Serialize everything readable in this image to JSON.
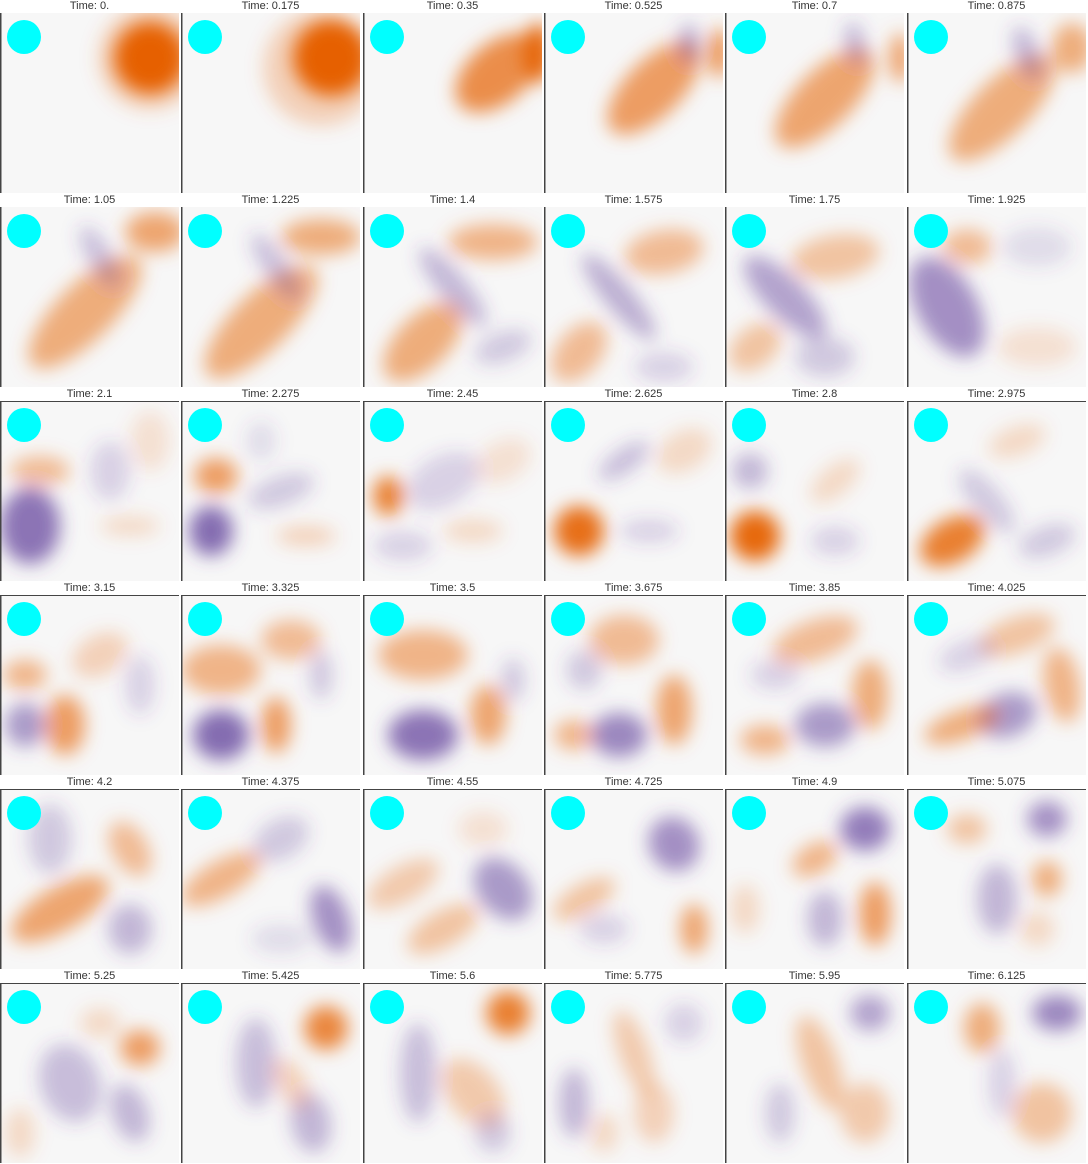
{
  "colors": {
    "field_background": "#f7f7f7",
    "positive": "#e66101",
    "negative": "#5e3c99",
    "source_marker": "#00ffff",
    "frame_border": "#444444"
  },
  "frames": [
    {
      "title": "Time: 0."
    },
    {
      "title": "Time: 0.175"
    },
    {
      "title": "Time: 0.35"
    },
    {
      "title": "Time: 0.525"
    },
    {
      "title": "Time: 0.7"
    },
    {
      "title": "Time: 0.875"
    },
    {
      "title": "Time: 1.05"
    },
    {
      "title": "Time: 1.225"
    },
    {
      "title": "Time: 1.4"
    },
    {
      "title": "Time: 1.575"
    },
    {
      "title": "Time: 1.75"
    },
    {
      "title": "Time: 1.925"
    },
    {
      "title": "Time: 2.1"
    },
    {
      "title": "Time: 2.275"
    },
    {
      "title": "Time: 2.45"
    },
    {
      "title": "Time: 2.625"
    },
    {
      "title": "Time: 2.8"
    },
    {
      "title": "Time: 2.975"
    },
    {
      "title": "Time: 3.15"
    },
    {
      "title": "Time: 3.325"
    },
    {
      "title": "Time: 3.5"
    },
    {
      "title": "Time: 3.675"
    },
    {
      "title": "Time: 3.85"
    },
    {
      "title": "Time: 4.025"
    },
    {
      "title": "Time: 4.2"
    },
    {
      "title": "Time: 4.375"
    },
    {
      "title": "Time: 4.55"
    },
    {
      "title": "Time: 4.725"
    },
    {
      "title": "Time: 4.9"
    },
    {
      "title": "Time: 5.075"
    },
    {
      "title": "Time: 5.25"
    },
    {
      "title": "Time: 5.425"
    },
    {
      "title": "Time: 5.6"
    },
    {
      "title": "Time: 5.775"
    },
    {
      "title": "Time: 5.95"
    },
    {
      "title": "Time: 6.125"
    }
  ]
}
